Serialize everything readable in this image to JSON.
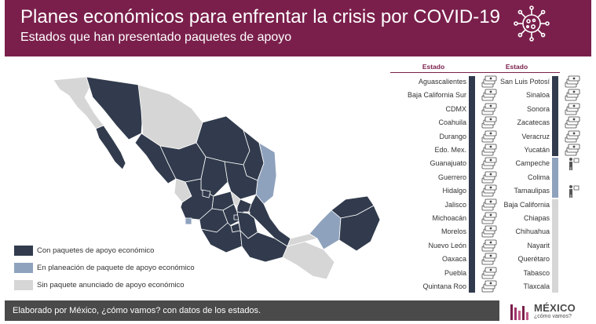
{
  "header": {
    "title": "Planes económicos para enfrentar la crisis por COVID-19",
    "subtitle": "Estados que han presentado paquetes de apoyo"
  },
  "colors": {
    "brand": "#7a1f4b",
    "with_package": "#313b4d",
    "planning": "#8fa2bd",
    "none": "#d6d6d6",
    "footer": "#4a4a4a"
  },
  "legend": [
    {
      "label": "Con paquetes de apoyo económico",
      "color": "#313b4d"
    },
    {
      "label": "En planeación de paquete de apoyo económico",
      "color": "#8fa2bd"
    },
    {
      "label": "Sin paquete anunciado de apoyo económico",
      "color": "#d6d6d6"
    }
  ],
  "table": {
    "column_header": "Estado",
    "left_column": [
      {
        "name": "Aguascalientes",
        "status": "with_package",
        "icon": "money-stack-icon"
      },
      {
        "name": "Baja California Sur",
        "status": "with_package",
        "icon": "money-stack-icon"
      },
      {
        "name": "CDMX",
        "status": "with_package",
        "icon": "money-stack-icon"
      },
      {
        "name": "Coahuila",
        "status": "with_package",
        "icon": "money-stack-icon"
      },
      {
        "name": "Durango",
        "status": "with_package",
        "icon": "money-stack-icon"
      },
      {
        "name": "Edo. Mex.",
        "status": "with_package",
        "icon": "money-stack-icon"
      },
      {
        "name": "Guanajuato",
        "status": "with_package",
        "icon": "money-stack-icon"
      },
      {
        "name": "Guerrero",
        "status": "with_package",
        "icon": "money-stack-icon"
      },
      {
        "name": "Hidalgo",
        "status": "with_package",
        "icon": "money-stack-icon"
      },
      {
        "name": "Jalisco",
        "status": "with_package",
        "icon": "money-stack-icon"
      },
      {
        "name": "Michoacán",
        "status": "with_package",
        "icon": "money-stack-icon"
      },
      {
        "name": "Morelos",
        "status": "with_package",
        "icon": "money-stack-icon"
      },
      {
        "name": "Nuevo León",
        "status": "with_package",
        "icon": "money-stack-icon"
      },
      {
        "name": "Oaxaca",
        "status": "with_package",
        "icon": "money-stack-icon"
      },
      {
        "name": "Puebla",
        "status": "with_package",
        "icon": "money-stack-icon"
      },
      {
        "name": "Quintana Roo",
        "status": "with_package",
        "icon": "money-stack-icon"
      }
    ],
    "right_column": [
      {
        "name": "San Luis Potosí",
        "status": "with_package",
        "icon": "money-stack-icon"
      },
      {
        "name": "Sinaloa",
        "status": "with_package",
        "icon": "money-stack-icon"
      },
      {
        "name": "Sonora",
        "status": "with_package",
        "icon": "money-stack-icon"
      },
      {
        "name": "Zacatecas",
        "status": "with_package",
        "icon": "money-stack-icon"
      },
      {
        "name": "Veracruz",
        "status": "with_package",
        "icon": "money-stack-icon"
      },
      {
        "name": "Yucatán",
        "status": "with_package",
        "icon": "money-stack-icon"
      },
      {
        "name": "Campeche",
        "status": "planning",
        "icon": "planning-person-icon"
      },
      {
        "name": "Colima",
        "status": "planning",
        "icon": ""
      },
      {
        "name": "Tamaulipas",
        "status": "planning",
        "icon": "planning-person-icon"
      },
      {
        "name": "Baja California",
        "status": "none",
        "icon": ""
      },
      {
        "name": "Chiapas",
        "status": "none",
        "icon": ""
      },
      {
        "name": "Chihuahua",
        "status": "none",
        "icon": ""
      },
      {
        "name": "Nayarit",
        "status": "none",
        "icon": ""
      },
      {
        "name": "Querétaro",
        "status": "none",
        "icon": ""
      },
      {
        "name": "Tabasco",
        "status": "none",
        "icon": ""
      },
      {
        "name": "Tlaxcala",
        "status": "none",
        "icon": ""
      }
    ]
  },
  "footer": {
    "source": "Elaborado por México, ¿cómo vamos? con datos de los estados."
  },
  "logo": {
    "line1": "MÉXICO",
    "line2": "¿cómo vamos?"
  }
}
